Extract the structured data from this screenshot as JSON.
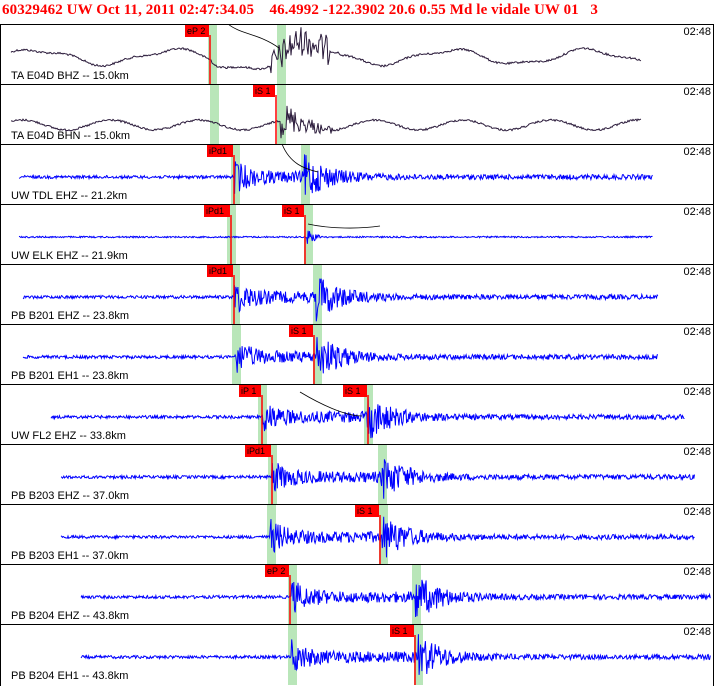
{
  "header": {
    "title": "60329462 UW Oct 11, 2011 02:47:34.05    46.4992 -122.3902 20.6 0.55 Md le vidale UW 01   3"
  },
  "traces": [
    {
      "label": "TA E04D BHZ -- 15.0km",
      "time": "02:48",
      "color": "#2a1a3a",
      "picks": [
        {
          "text": "eP 2"
        }
      ]
    },
    {
      "label": "TA E04D BHN -- 15.0km",
      "time": "02:48",
      "color": "#2a1a3a",
      "picks": [
        {
          "text": "iS 1"
        }
      ]
    },
    {
      "label": "UW TDL EHZ -- 21.2km",
      "time": "02:48",
      "color": "#0000ff",
      "picks": [
        {
          "text": "iPd1"
        }
      ]
    },
    {
      "label": "UW ELK EHZ -- 21.9km",
      "time": "02:48",
      "color": "#0000ff",
      "picks": [
        {
          "text": "iPd1"
        },
        {
          "text": "iS 1"
        }
      ]
    },
    {
      "label": "PB B201 EHZ -- 23.8km",
      "time": "02:48",
      "color": "#0000ff",
      "picks": [
        {
          "text": "iPd1"
        }
      ]
    },
    {
      "label": "PB B201 EH1 -- 23.8km",
      "time": "02:48",
      "color": "#0000ff",
      "picks": [
        {
          "text": "iS 1"
        }
      ]
    },
    {
      "label": "UW FL2 EHZ -- 33.8km",
      "time": "02:48",
      "color": "#0000ff",
      "picks": [
        {
          "text": "iP 1"
        },
        {
          "text": "iS 1"
        }
      ]
    },
    {
      "label": "PB B203 EHZ -- 37.0km",
      "time": "02:48",
      "color": "#0000ff",
      "picks": [
        {
          "text": "iPd1"
        }
      ]
    },
    {
      "label": "PB B203 EH1 -- 37.0km",
      "time": "02:48",
      "color": "#0000ff",
      "picks": [
        {
          "text": "iS 1"
        }
      ]
    },
    {
      "label": "PB B204 EHZ -- 43.8km",
      "time": "02:48",
      "color": "#0000ff",
      "picks": [
        {
          "text": "eP 2"
        }
      ]
    },
    {
      "label": "PB B204 EH1 -- 43.8km",
      "time": "02:48",
      "color": "#0000ff",
      "picks": [
        {
          "text": "iS 1"
        }
      ]
    }
  ],
  "colors": {
    "title": "#ff0000",
    "pick": "#ff0000",
    "band": "#b9e6b9",
    "trace_blue": "#0000ff",
    "trace_dark": "#2a1a3a"
  }
}
